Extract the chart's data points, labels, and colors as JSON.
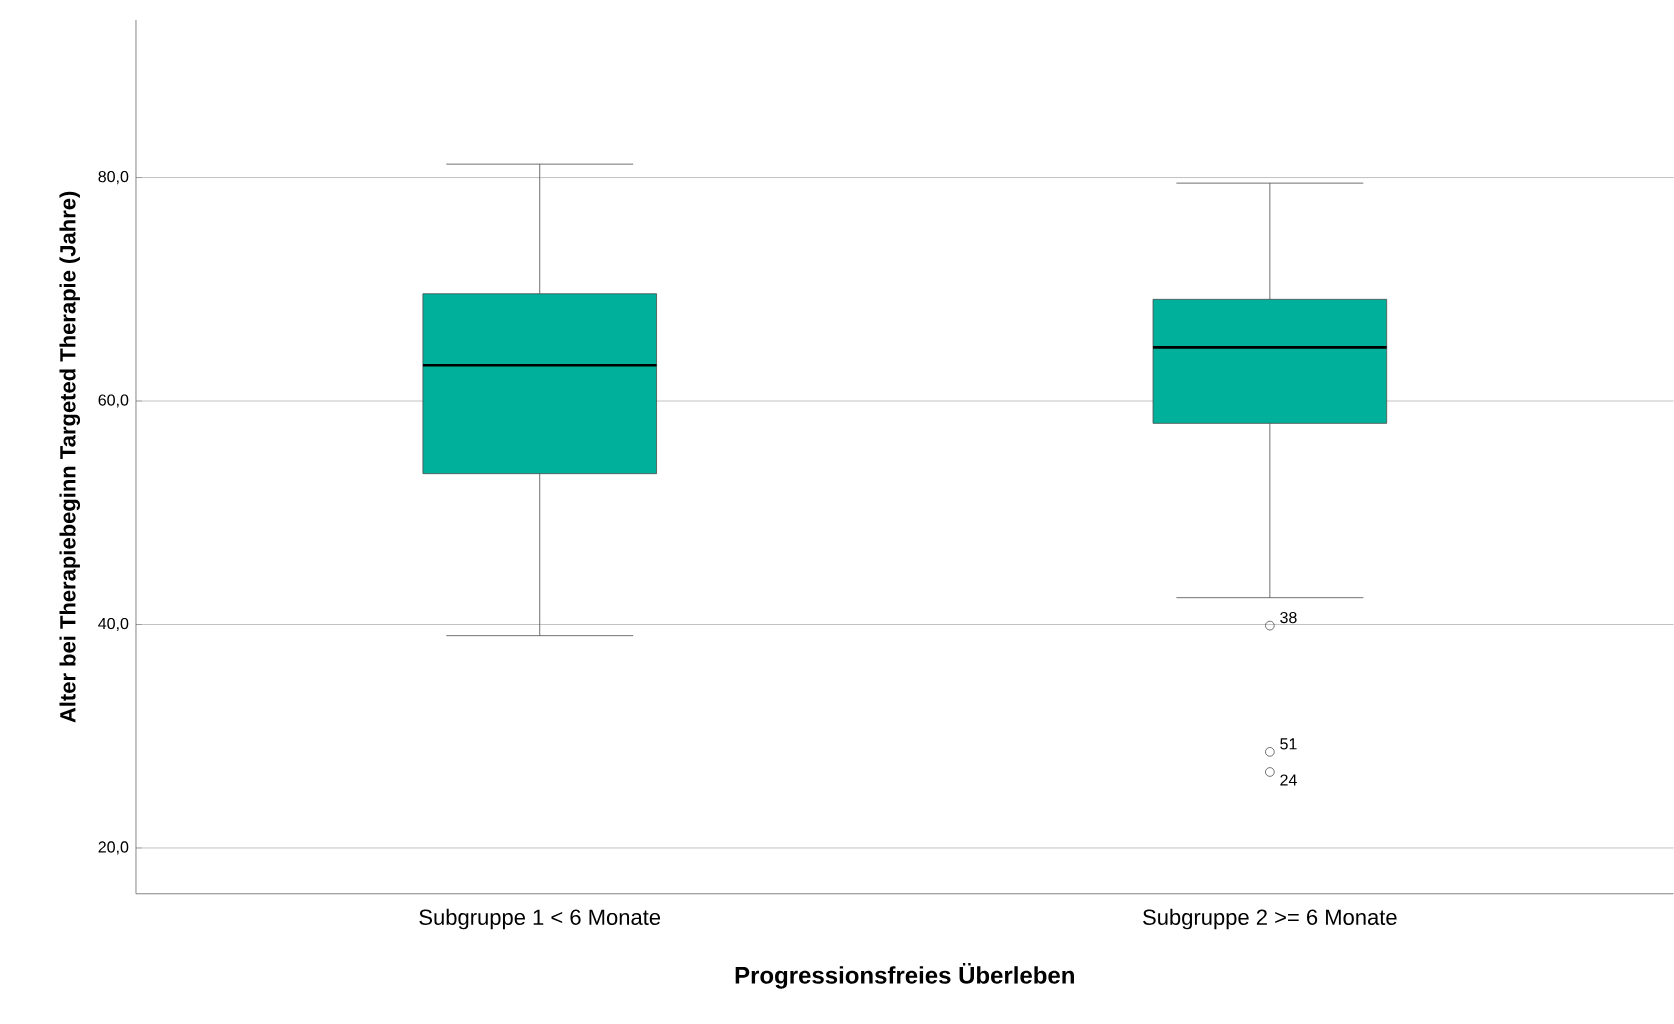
{
  "chart_data": {
    "type": "box",
    "xlabel": "Progressionsfreies Überleben",
    "ylabel": "Alter bei Therapiebeginn Targeted Therapie (Jahre)",
    "categories": [
      "Subgruppe 1 <  6 Monate",
      "Subgruppe 2 >= 6 Monate"
    ],
    "boxes": [
      {
        "low": 39.0,
        "q1": 53.5,
        "median": 63.2,
        "q3": 69.6,
        "high": 81.2
      },
      {
        "low": 42.4,
        "q1": 58.0,
        "median": 64.8,
        "q3": 69.1,
        "high": 79.5,
        "outliers": [
          39.9,
          28.6,
          26.8
        ]
      }
    ],
    "color": "#00b09a",
    "marker": "circle",
    "ylim": [
      15.9,
      94.1
    ],
    "yticks": [
      {
        "value": 20,
        "label": "20,0"
      },
      {
        "value": 40,
        "label": "40,0"
      },
      {
        "value": 60,
        "label": "60,0"
      },
      {
        "value": 80,
        "label": "80,0"
      }
    ],
    "grid": "y",
    "annotations": [
      "38",
      "51",
      "24"
    ]
  }
}
